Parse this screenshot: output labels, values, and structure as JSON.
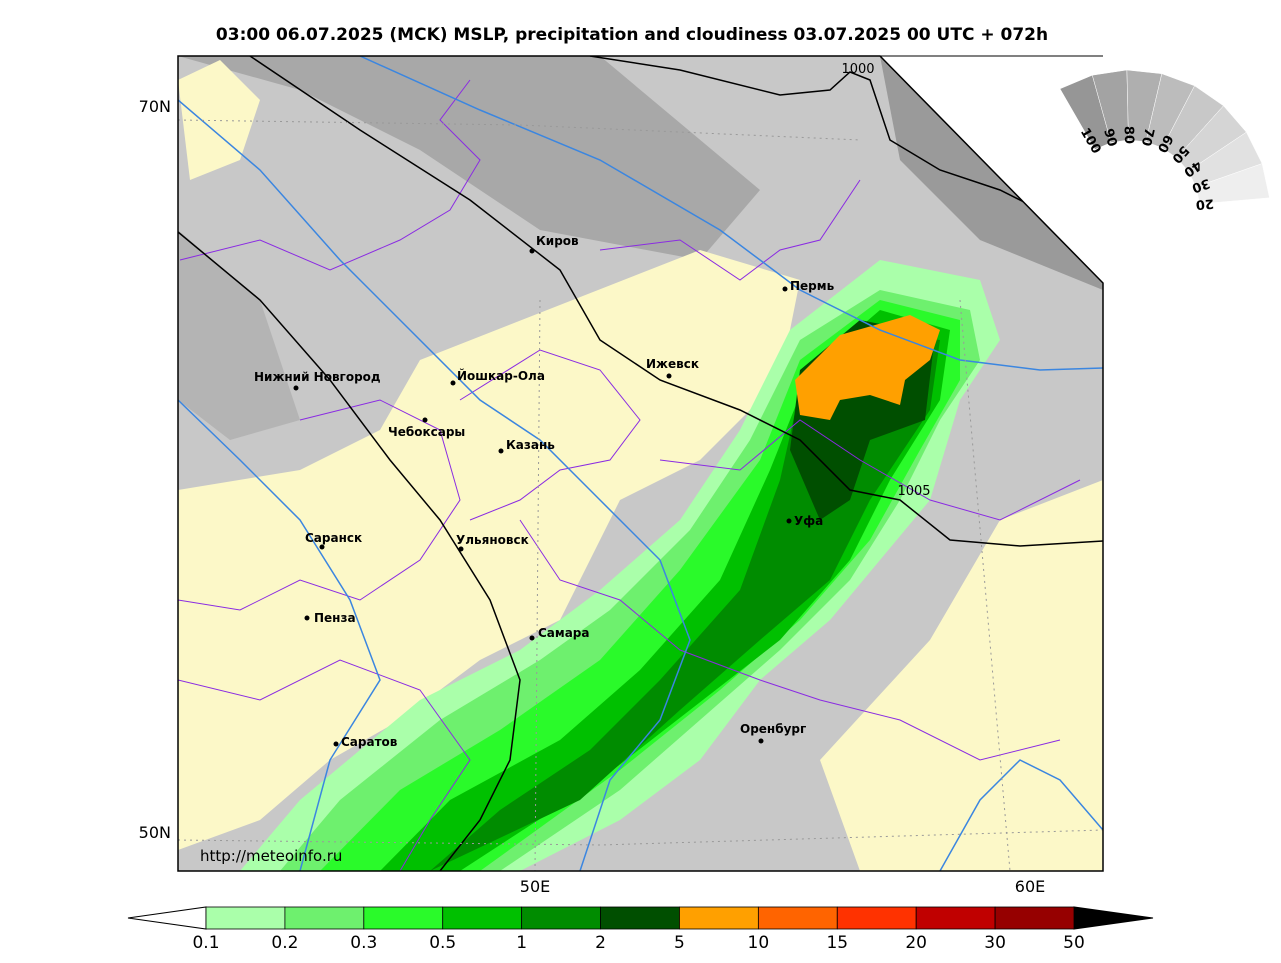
{
  "title": "03:00 06.07.2025 (MCK) MSLP, precipitation and cloudiness 03.07.2025 00 UTC + 072h",
  "map": {
    "lat_labels": [
      "70N",
      "50N"
    ],
    "lon_labels": [
      "50E",
      "60E"
    ],
    "isobar_labels": [
      "1000",
      "1005"
    ],
    "cities": [
      "Киров",
      "Пермь",
      "Ижевск",
      "Нижний Новгород",
      "Йошкар-Ола",
      "Чебоксары",
      "Казань",
      "Уфа",
      "Саранск",
      "Ульяновск",
      "Пенза",
      "Самара",
      "Оренбург",
      "Саратов"
    ],
    "url": "http://meteoinfo.ru"
  },
  "cloud_scale": {
    "labels": [
      100,
      90,
      80,
      70,
      60,
      50,
      40,
      30,
      20
    ]
  },
  "colorbar": {
    "under_color": "#ffffff",
    "over_color": "#000000",
    "colors": [
      "#aaffaa",
      "#6ef06e",
      "#2afa2a",
      "#00c000",
      "#008c00",
      "#004f00",
      "#ffa000",
      "#ff6400",
      "#ff3200",
      "#c00000",
      "#960000"
    ],
    "ticks": [
      0.1,
      0.2,
      0.3,
      0.5,
      1,
      2,
      5,
      10,
      15,
      20,
      30,
      50
    ]
  }
}
